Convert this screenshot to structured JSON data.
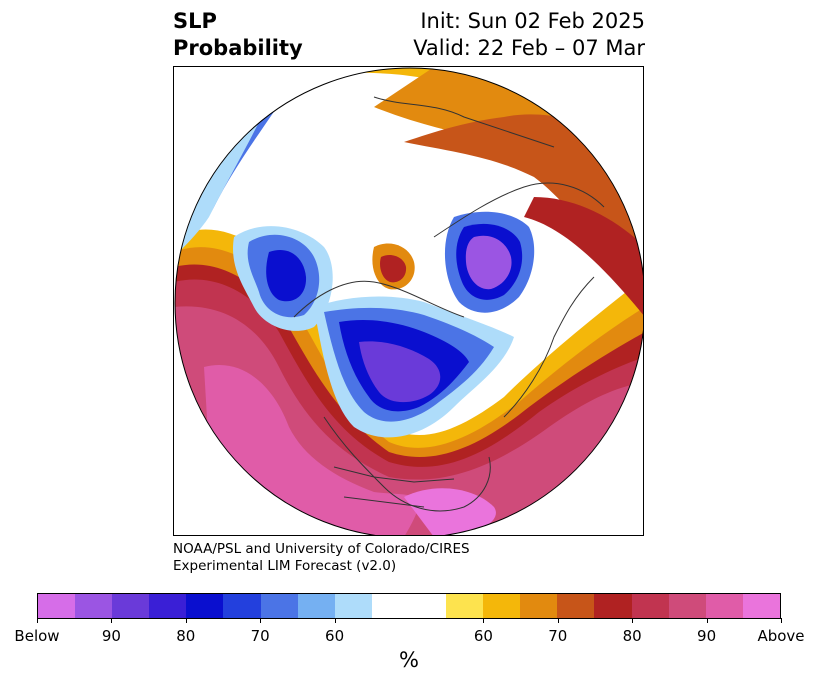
{
  "title": {
    "left_line1": "SLP",
    "left_line2": "Probability",
    "right_line1": "Init: Sun 02 Feb 2025",
    "right_line2": "Valid: 22 Feb – 07 Mar"
  },
  "credit": {
    "line1": "NOAA/PSL and University of Colorado/CIRES",
    "line2": "Experimental LIM Forecast (v2.0)"
  },
  "colorbar": {
    "colors": [
      "#d66de8",
      "#9b55e3",
      "#6a3ad9",
      "#3a1fd6",
      "#0a0fcf",
      "#2340dd",
      "#4b74e6",
      "#75b0f2",
      "#aedcfa",
      "#ffffff",
      "#ffffff",
      "#fde34e",
      "#f4b70a",
      "#e28a0f",
      "#c75519",
      "#b02222",
      "#c13450",
      "#cf4b7a",
      "#e05ca8",
      "#ea74dc"
    ],
    "tick_labels": [
      "Below",
      "90",
      "80",
      "70",
      "60",
      "60",
      "70",
      "80",
      "90",
      "Above"
    ],
    "units": "%"
  },
  "map": {
    "projection": "north-polar-stereographic",
    "field": "SLP probability",
    "features": [
      "coastlines",
      "country-borders",
      "us-state-borders"
    ]
  }
}
